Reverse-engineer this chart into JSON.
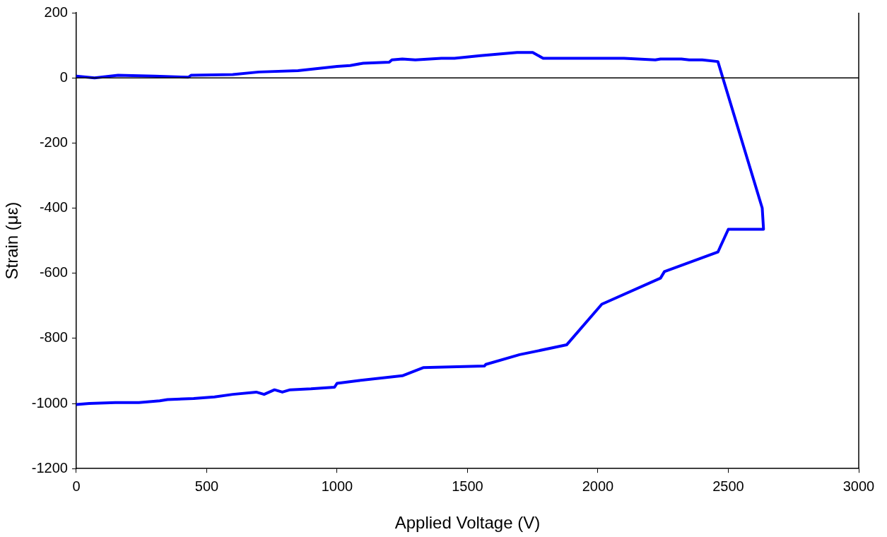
{
  "chart_data": {
    "type": "line",
    "xlabel": "Applied Voltage (V)",
    "ylabel": "Strain (με)",
    "x": [
      0,
      70,
      160,
      300,
      430,
      440,
      600,
      700,
      850,
      1000,
      1050,
      1100,
      1200,
      1210,
      1250,
      1300,
      1400,
      1450,
      1550,
      1690,
      1750,
      1790,
      2100,
      2220,
      2240,
      2320,
      2350,
      2400,
      2460,
      2630,
      2635,
      2500,
      2460,
      2255,
      2240,
      2015,
      1880,
      1700,
      1570,
      1565,
      1330,
      1250,
      1080,
      1000,
      990,
      900,
      820,
      790,
      760,
      720,
      690,
      600,
      530,
      450,
      350,
      320,
      240,
      150,
      50,
      0
    ],
    "series": [
      {
        "color": "#0000ff",
        "values": [
          5,
          0,
          8,
          5,
          2,
          8,
          10,
          18,
          22,
          35,
          38,
          45,
          48,
          55,
          58,
          55,
          60,
          60,
          68,
          78,
          78,
          60,
          60,
          55,
          58,
          58,
          55,
          55,
          50,
          -400,
          -465,
          -465,
          -535,
          -595,
          -615,
          -695,
          -820,
          -850,
          -880,
          -885,
          -890,
          -915,
          -930,
          -938,
          -950,
          -955,
          -958,
          -965,
          -958,
          -972,
          -965,
          -972,
          -980,
          -985,
          -988,
          -992,
          -997,
          -997,
          -1000,
          -1003
        ]
      }
    ],
    "xlim": [
      0,
      3000
    ],
    "xticks": [
      0,
      500,
      1000,
      1500,
      2000,
      2500,
      3000
    ],
    "ylim": [
      -1200,
      200
    ],
    "yticks": [
      -1200,
      -1000,
      -800,
      -600,
      -400,
      -200,
      0,
      200
    ],
    "ref_lines": [
      {
        "axis": "y",
        "value": 0,
        "color": "#000000"
      }
    ],
    "grid": false,
    "legend": false,
    "marker": "none",
    "line_style": "solid"
  }
}
